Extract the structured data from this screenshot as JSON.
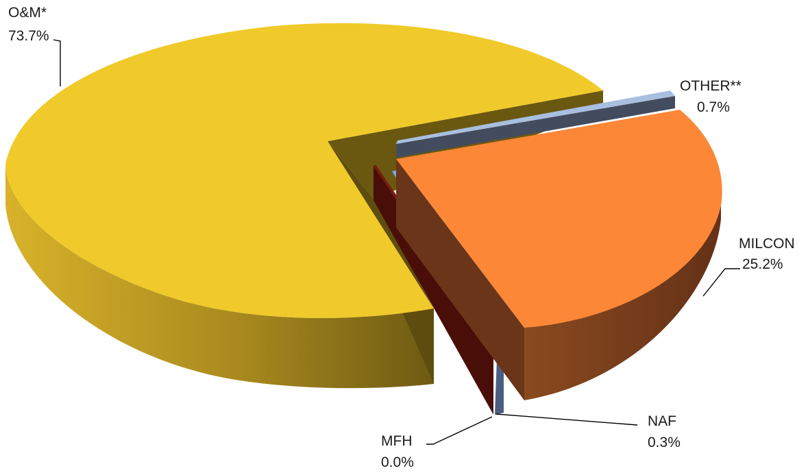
{
  "chart_data": {
    "type": "pie",
    "style": "3d-exploded",
    "title": "",
    "legend": "none",
    "slices": [
      {
        "label": "O&M*",
        "value": 73.7,
        "value_label": "73.7%",
        "color": "#f0ca2a"
      },
      {
        "label": "OTHER**",
        "value": 0.7,
        "value_label": "0.7%",
        "color": "#a9bfe0"
      },
      {
        "label": "MILCON",
        "value": 25.2,
        "value_label": "25.2%",
        "color": "#fb8737"
      },
      {
        "label": "NAF",
        "value": 0.3,
        "value_label": "0.3%",
        "color": "#7fa4e4"
      },
      {
        "label": "MFH",
        "value": 0.0,
        "value_label": "0.0%",
        "color": "#7a1a10"
      }
    ]
  }
}
